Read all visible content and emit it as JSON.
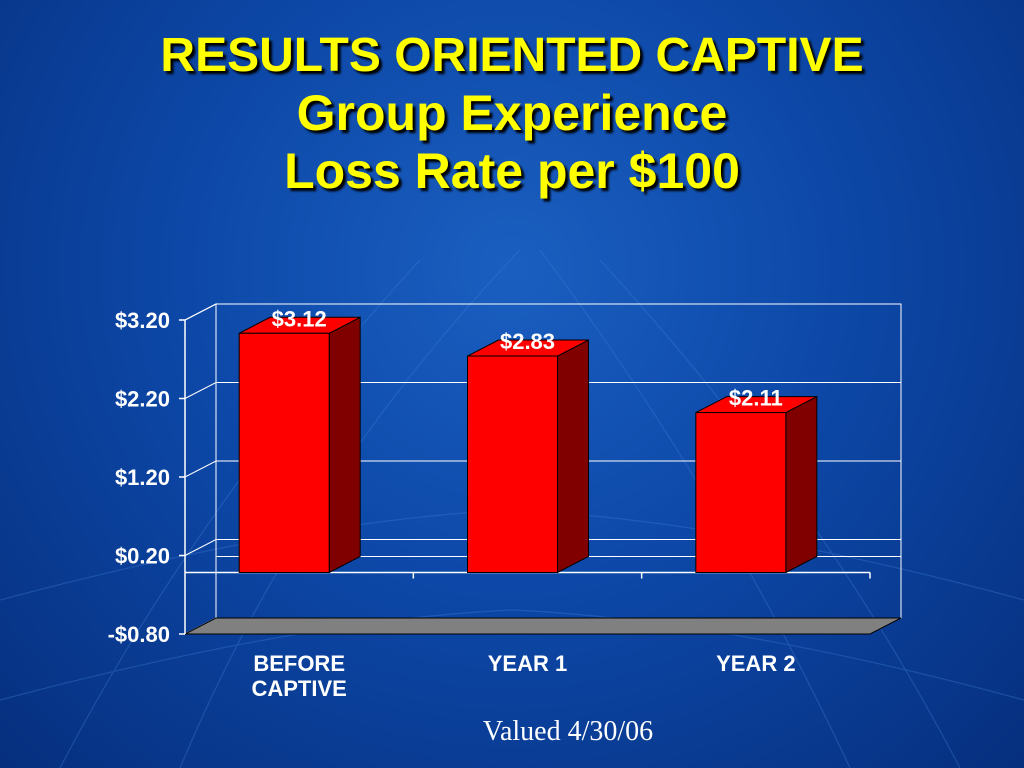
{
  "title": {
    "line1": "RESULTS  ORIENTED CAPTIVE",
    "line2": "Group Experience",
    "line3": "Loss Rate per $100"
  },
  "footer_note": "Valued 4/30/06",
  "colors": {
    "bar_front": "#ff0000",
    "bar_side": "#800000",
    "title": "#ffff00",
    "floor": "#808080",
    "text": "#ffffff"
  },
  "chart_data": {
    "type": "bar",
    "categories": [
      [
        "BEFORE",
        "CAPTIVE"
      ],
      [
        "YEAR 1"
      ],
      [
        "YEAR 2"
      ]
    ],
    "values": [
      3.12,
      2.83,
      2.11
    ],
    "data_labels": [
      "$3.12",
      "$2.83",
      "$2.11"
    ],
    "y_ticks": [
      -0.8,
      0.2,
      1.2,
      2.2,
      3.2
    ],
    "y_tick_labels": [
      "-$0.80",
      "$0.20",
      "$1.20",
      "$2.20",
      "$3.20"
    ],
    "ylim": [
      -0.8,
      3.2
    ],
    "grid": true,
    "style": "3d"
  }
}
